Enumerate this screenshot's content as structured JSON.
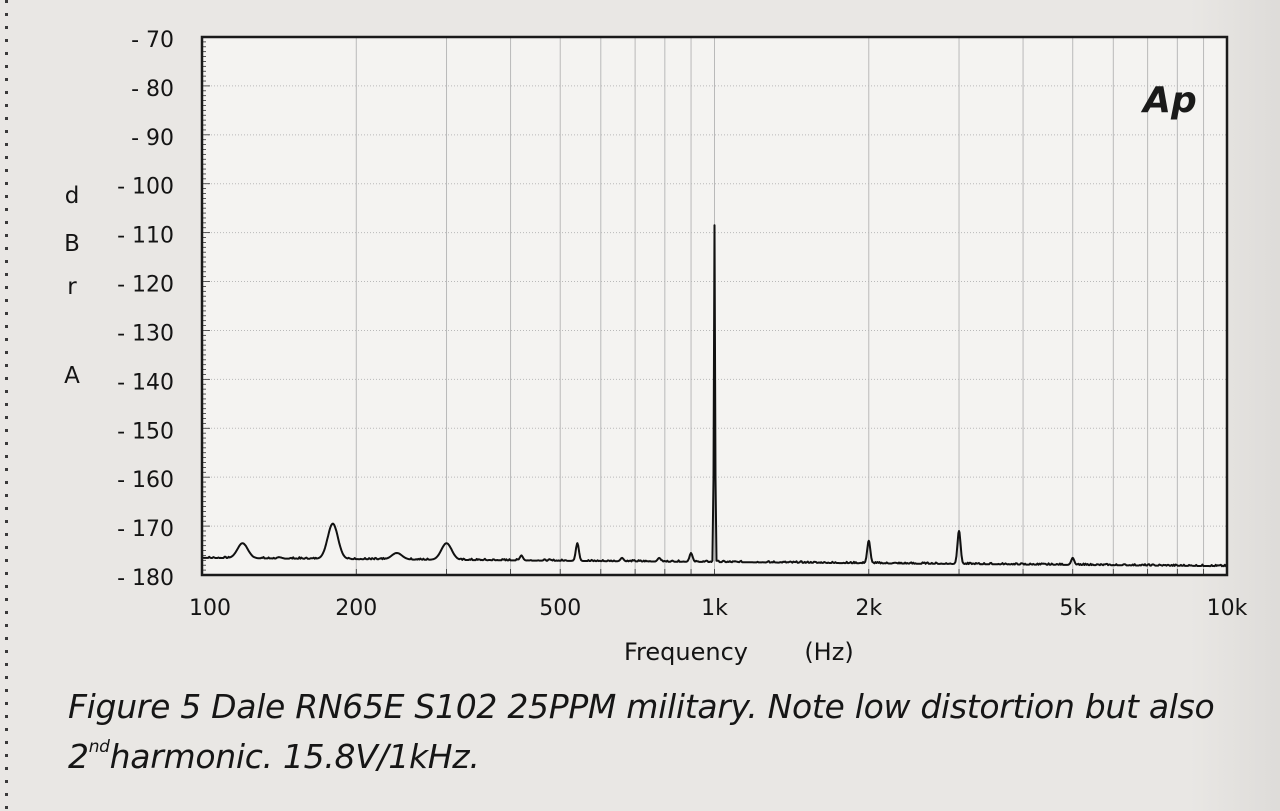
{
  "chart_data": {
    "type": "line",
    "title": "",
    "xlabel": "Frequency (Hz)",
    "xlabel_parts": [
      "Frequency",
      "(Hz)"
    ],
    "ylabel": "dBrA",
    "ylabel_letters": [
      "d",
      "B",
      "r",
      "A"
    ],
    "x_scale": "log",
    "xlim": [
      100,
      10000
    ],
    "ylim": [
      -180,
      -70
    ],
    "grid": true,
    "legend": "none",
    "x_ticks": [
      {
        "value": 100,
        "label": "100"
      },
      {
        "value": 200,
        "label": "200"
      },
      {
        "value": 500,
        "label": "500"
      },
      {
        "value": 1000,
        "label": "1k"
      },
      {
        "value": 2000,
        "label": "2k"
      },
      {
        "value": 5000,
        "label": "5k"
      },
      {
        "value": 10000,
        "label": "10k"
      }
    ],
    "y_ticks": [
      {
        "value": -70,
        "label": "- 70"
      },
      {
        "value": -80,
        "label": "- 80"
      },
      {
        "value": -90,
        "label": "- 90"
      },
      {
        "value": -100,
        "label": "- 100"
      },
      {
        "value": -110,
        "label": "- 110"
      },
      {
        "value": -120,
        "label": "- 120"
      },
      {
        "value": -130,
        "label": "- 130"
      },
      {
        "value": -140,
        "label": "- 140"
      },
      {
        "value": -150,
        "label": "- 150"
      },
      {
        "value": -160,
        "label": "- 160"
      },
      {
        "value": -170,
        "label": "- 170"
      },
      {
        "value": -180,
        "label": "- 180"
      }
    ],
    "noise_floor_start": -176.5,
    "noise_floor_end": -178.2,
    "peaks": [
      {
        "freq": 120,
        "level": -173.5
      },
      {
        "freq": 180,
        "level": -169.5
      },
      {
        "freq": 240,
        "level": -175.5
      },
      {
        "freq": 300,
        "level": -173.5
      },
      {
        "freq": 420,
        "level": -176.0
      },
      {
        "freq": 540,
        "level": -173.5
      },
      {
        "freq": 660,
        "level": -176.5
      },
      {
        "freq": 780,
        "level": -176.5
      },
      {
        "freq": 900,
        "level": -175.5
      },
      {
        "freq": 1000,
        "level": -108.5
      },
      {
        "freq": 2000,
        "level": -173.0
      },
      {
        "freq": 3000,
        "level": -171.0
      },
      {
        "freq": 5000,
        "level": -176.5
      }
    ],
    "logo_text": "Ap",
    "colors": {
      "trace": "#111111",
      "grid": "#b9b9b9",
      "frame": "#1a1a1a"
    }
  },
  "caption": {
    "line1": "Figure 5 Dale RN65E S102 25PPM military. Note low distortion but also",
    "ordinal_number": "2",
    "ordinal_suffix": "nd",
    "line2_rest": "harmonic. 15.8V/1kHz."
  }
}
